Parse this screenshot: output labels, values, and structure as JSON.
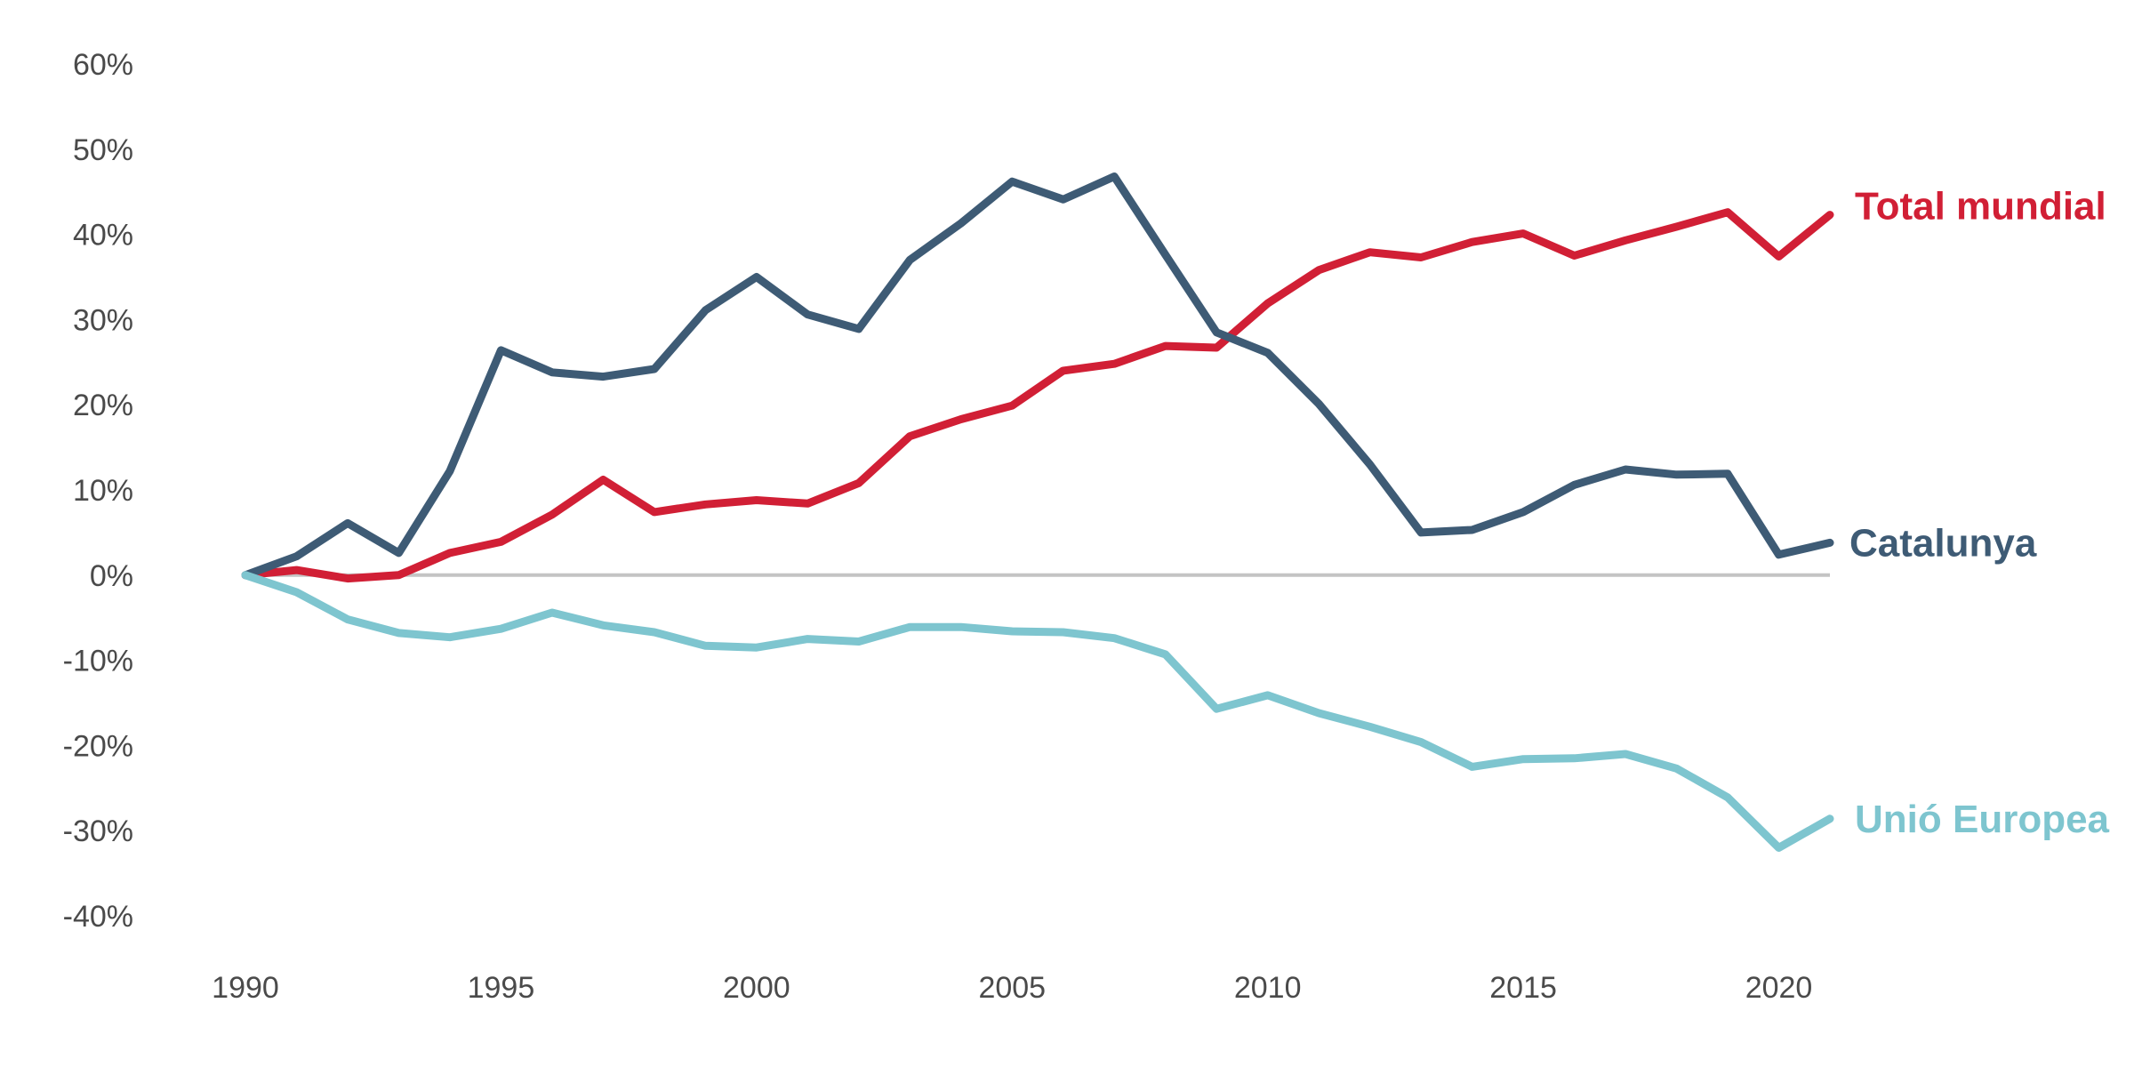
{
  "chart_data": {
    "type": "line",
    "title": "",
    "xlabel": "",
    "ylabel": "",
    "x": [
      1990,
      1991,
      1992,
      1993,
      1994,
      1995,
      1996,
      1997,
      1998,
      1999,
      2000,
      2001,
      2002,
      2003,
      2004,
      2005,
      2006,
      2007,
      2008,
      2009,
      2010,
      2011,
      2012,
      2013,
      2014,
      2015,
      2016,
      2017,
      2018,
      2019,
      2020,
      2021
    ],
    "xlim": [
      1990,
      2021
    ],
    "ylim": [
      -40,
      60
    ],
    "x_ticks": [
      1990,
      1995,
      2000,
      2005,
      2010,
      2015,
      2020
    ],
    "x_tick_labels": [
      "1990",
      "1995",
      "2000",
      "2005",
      "2010",
      "2015",
      "2020"
    ],
    "y_ticks": [
      60,
      50,
      40,
      30,
      20,
      10,
      0,
      -10,
      -20,
      -30,
      -40
    ],
    "y_tick_labels": [
      "60%",
      "50%",
      "40%",
      "30%",
      "20%",
      "10%",
      "0%",
      "-10%",
      "-20%",
      "-30%",
      "-40%"
    ],
    "grid": false,
    "legend": "direct labels at line ends",
    "series": [
      {
        "name": "Total mundial",
        "color": "#d11f35",
        "values": [
          0,
          0.6,
          -0.4,
          0,
          2.6,
          3.9,
          7.1,
          11.2,
          7.4,
          8.3,
          8.8,
          8.4,
          10.8,
          16.3,
          18.3,
          19.9,
          24,
          24.8,
          26.9,
          26.7,
          31.9,
          35.8,
          37.9,
          37.3,
          39.1,
          40.1,
          37.5,
          39.3,
          40.9,
          42.6,
          37.4,
          42.3
        ]
      },
      {
        "name": "Catalunya",
        "color": "#3e5b75",
        "values": [
          0,
          2.2,
          6.1,
          2.6,
          12.2,
          26.4,
          23.8,
          23.3,
          24.2,
          31.1,
          35,
          30.6,
          28.9,
          37,
          41.3,
          46.2,
          44.1,
          46.8,
          37.6,
          28.5,
          26.1,
          20.1,
          13,
          5,
          5.3,
          7.4,
          10.6,
          12.4,
          11.8,
          11.9,
          2.4,
          3.8
        ]
      },
      {
        "name": "Unió Europea",
        "color": "#7ec5cf",
        "values": [
          0,
          -2,
          -5.2,
          -6.8,
          -7.3,
          -6.3,
          -4.4,
          -5.9,
          -6.7,
          -8.3,
          -8.5,
          -7.5,
          -7.8,
          -6.1,
          -6.1,
          -6.6,
          -6.7,
          -7.4,
          -9.3,
          -15.7,
          -14.1,
          -16.2,
          -17.8,
          -19.6,
          -22.5,
          -21.6,
          -21.5,
          -21,
          -22.7,
          -26.1,
          -32,
          -28.6
        ]
      }
    ]
  }
}
